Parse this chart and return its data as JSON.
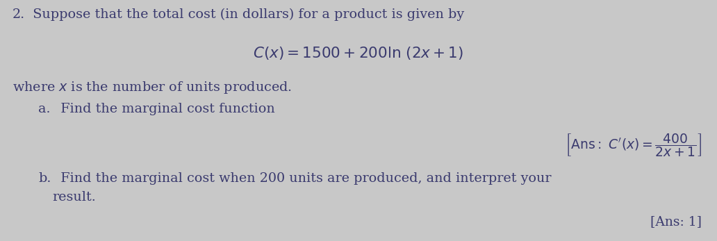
{
  "bg_color": "#c8c8c8",
  "text_color": "#3a3a6e",
  "line1_num": "2.",
  "line1_text": "  Suppose that the total cost (in dollars) for a product is given by",
  "line2_latex": "$C(x) = 1500 + 200\\ln\\,(2x+1)$",
  "line3": "where $x$ is the number of units produced.",
  "line4a": "a.",
  "line4b": "  Find the marginal cost function",
  "ans_a_latex": "$\\left[\\mathrm{Ans:}\\ C'(x) = \\dfrac{400}{2x+1}\\right]$",
  "line5a": "b.",
  "line5b": "  Find the marginal cost when 200 units are produced, and interpret your",
  "line6": "result.",
  "ans_b": "[Ans: 1]",
  "font_size_main": 13.8,
  "font_size_formula": 15.5,
  "font_size_ans": 13.5
}
